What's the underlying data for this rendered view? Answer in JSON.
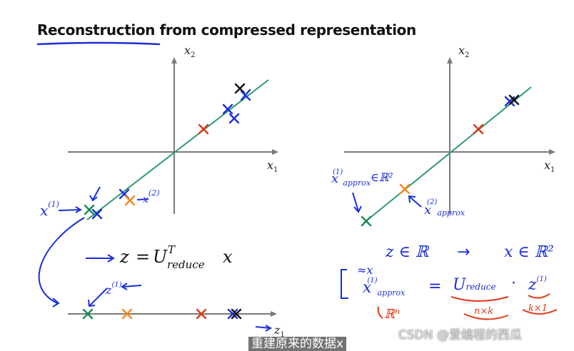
{
  "title": "Reconstruction from compressed representation",
  "left_plot": {
    "x_label": "x",
    "x_sub": "1",
    "y_label": "x",
    "y_sub": "2"
  },
  "right_plot": {
    "x_label": "x",
    "x_sub": "1",
    "y_label": "x",
    "y_sub": "2"
  },
  "bottom_axis": {
    "label": "z",
    "sub": "1"
  },
  "equation": {
    "z": "z",
    "equals": "=",
    "U": "U",
    "sup": "T",
    "sub": "reduce",
    "x": "x"
  },
  "annotations": {
    "x1_left": "x",
    "x1_sup": "(1)",
    "x2_left": "x",
    "x2_sup": "(2)",
    "z1_lower": "z",
    "z1_sup": "(1)",
    "xapprox1": "x",
    "xapprox1_sup": "(1)",
    "xapprox1_sub": "approx",
    "xapprox1_in": "∈ℝ²",
    "xapprox2": "x",
    "xapprox2_sup": "(2)",
    "xapprox2_sub": "approx",
    "z_in_R": "z ∈ ℝ",
    "arrow": "→",
    "x_in_Rn": "x ∈ ℝ²",
    "approx_x": "≈x",
    "xapprox_eq_x": "x",
    "xapprox_eq_sup": "(1)",
    "xapprox_eq_sub": "approx",
    "eq_sign": "=",
    "ureduce": "U",
    "ureduce_sub": "reduce",
    "dot": "·",
    "z_eq": "z",
    "z_eq_sup": "(1)",
    "rn": "ℝⁿ",
    "nxk": "n×k",
    "kx1": "k×1"
  },
  "watermark": "CSDN @爱编程的西瓜",
  "subtitle": "重建原来的数据x",
  "colors": {
    "axis": "#7a7a7a",
    "line": "#2e9a6e",
    "ink_blue": "#1c2fd6",
    "ink_red": "#e03a1a",
    "green_x": "#1a8a55",
    "orange_x": "#f28a1c",
    "red_x": "#d63a1c",
    "black_x": "#111111",
    "blue_x": "#1c2fd6"
  }
}
